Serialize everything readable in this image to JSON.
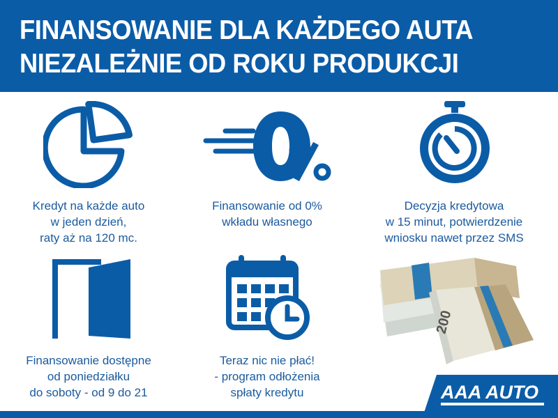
{
  "header": {
    "line1": "FINANSOWANIE DLA KAŻDEGO AUTA",
    "line2": "NIEZALEŻNIE OD ROKU PRODUKCJI"
  },
  "features": [
    {
      "icon": "pie-chart-icon",
      "lines": [
        "Kredyt na każde auto",
        "w jeden dzień,",
        "raty aż na 120 mc."
      ]
    },
    {
      "icon": "zero-percent-icon",
      "lines": [
        "Finansowanie od 0%",
        "wkładu własnego"
      ]
    },
    {
      "icon": "stopwatch-icon",
      "lines": [
        "Decyzja kredytowa",
        "w 15 minut, potwierdzenie",
        "wniosku nawet przez SMS"
      ]
    },
    {
      "icon": "open-door-icon",
      "lines": [
        "Finansowanie dostępne",
        "od poniedziałku",
        "do soboty - od 9 do 21"
      ]
    },
    {
      "icon": "calendar-clock-icon",
      "lines": [
        "Teraz nic nie płać!",
        "- program odłożenia",
        "spłaty kredytu"
      ]
    }
  ],
  "money_image": {
    "icon": "banknote-stack-icon",
    "denomination": "200"
  },
  "logo": {
    "text": "AAA AUTO"
  },
  "colors": {
    "brand_blue": "#0b5ca7",
    "text_blue": "#1a5a9e"
  }
}
